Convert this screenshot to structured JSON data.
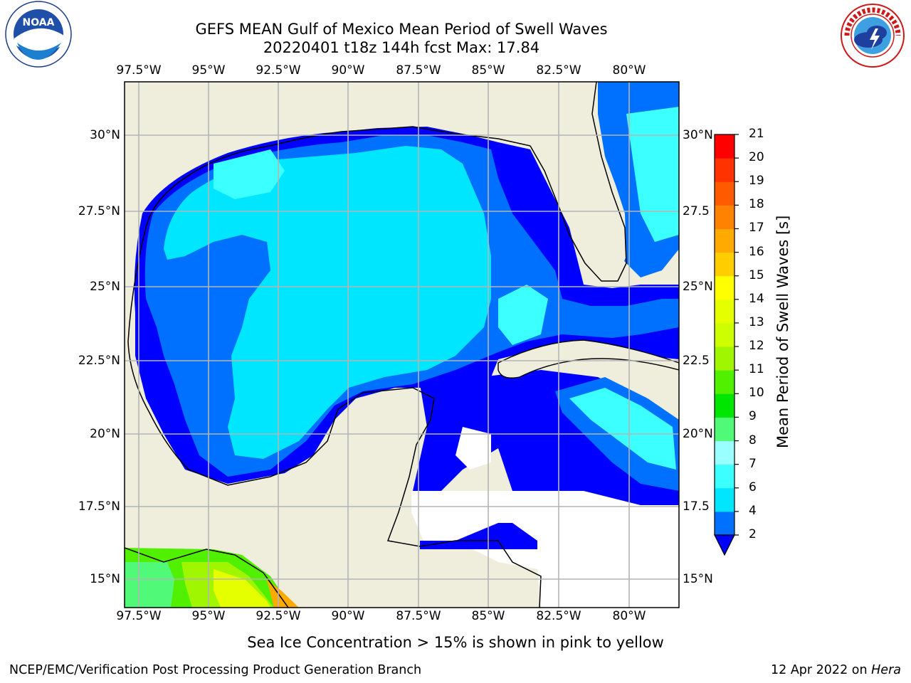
{
  "header": {
    "title": "GEFS MEAN Gulf of Mexico Mean Period of Swell Waves",
    "subtitle": "20220401 t18z 144h fcst   Max: 17.84"
  },
  "logos": {
    "noaa_text": "NOAA",
    "noaa_ring": "NATIONAL OCEANIC AND ATMOSPHERIC ADMINISTRATION · U.S. DEPARTMENT OF COMMERCE",
    "nws_ring": "NATIONAL WEATHER SERVICE"
  },
  "map": {
    "lon_ticks": [
      "97.5°W",
      "95°W",
      "92.5°W",
      "90°W",
      "87.5°W",
      "85°W",
      "82.5°W",
      "80°W"
    ],
    "lat_ticks_left": [
      "30°N",
      "27.5°N",
      "25°N",
      "22.5°N",
      "20°N",
      "17.5°N",
      "15°N"
    ],
    "lat_ticks_right": [
      "30°N",
      "27.5",
      "25°N",
      "22.5",
      "20°N",
      "17.5",
      "15°N"
    ],
    "lon_values": [
      -97.5,
      -95,
      -92.5,
      -90,
      -87.5,
      -85,
      -82.5,
      -80
    ],
    "lat_values": [
      30,
      27.5,
      25,
      22.5,
      20,
      17.5,
      15
    ],
    "land_color": "#efeddc",
    "grid_color": "#b4b4b4"
  },
  "colorbar": {
    "title": "Mean Period of Swell Waves [s]",
    "ticks": [
      "2",
      "4",
      "6",
      "7",
      "8",
      "9",
      "10",
      "11",
      "12",
      "13",
      "14",
      "15",
      "16",
      "17",
      "18",
      "19",
      "20",
      "21"
    ],
    "colors": [
      "#0071ff",
      "#00e6ff",
      "#3cffff",
      "#9affff",
      "#50fa78",
      "#00e600",
      "#50f000",
      "#a0f500",
      "#cdff00",
      "#e6ff00",
      "#ffff00",
      "#ffcd00",
      "#ffaa00",
      "#ff8200",
      "#ff5a00",
      "#ff3200",
      "#ff0000"
    ],
    "under_color": "#0000ff"
  },
  "footer": {
    "note": "Sea Ice Concentration > 15% is shown in pink to yellow",
    "left": "NCEP/EMC/Verification Post Processing Product Generation Branch",
    "right_date": "12 Apr 2022 on ",
    "right_host": "Hera"
  }
}
